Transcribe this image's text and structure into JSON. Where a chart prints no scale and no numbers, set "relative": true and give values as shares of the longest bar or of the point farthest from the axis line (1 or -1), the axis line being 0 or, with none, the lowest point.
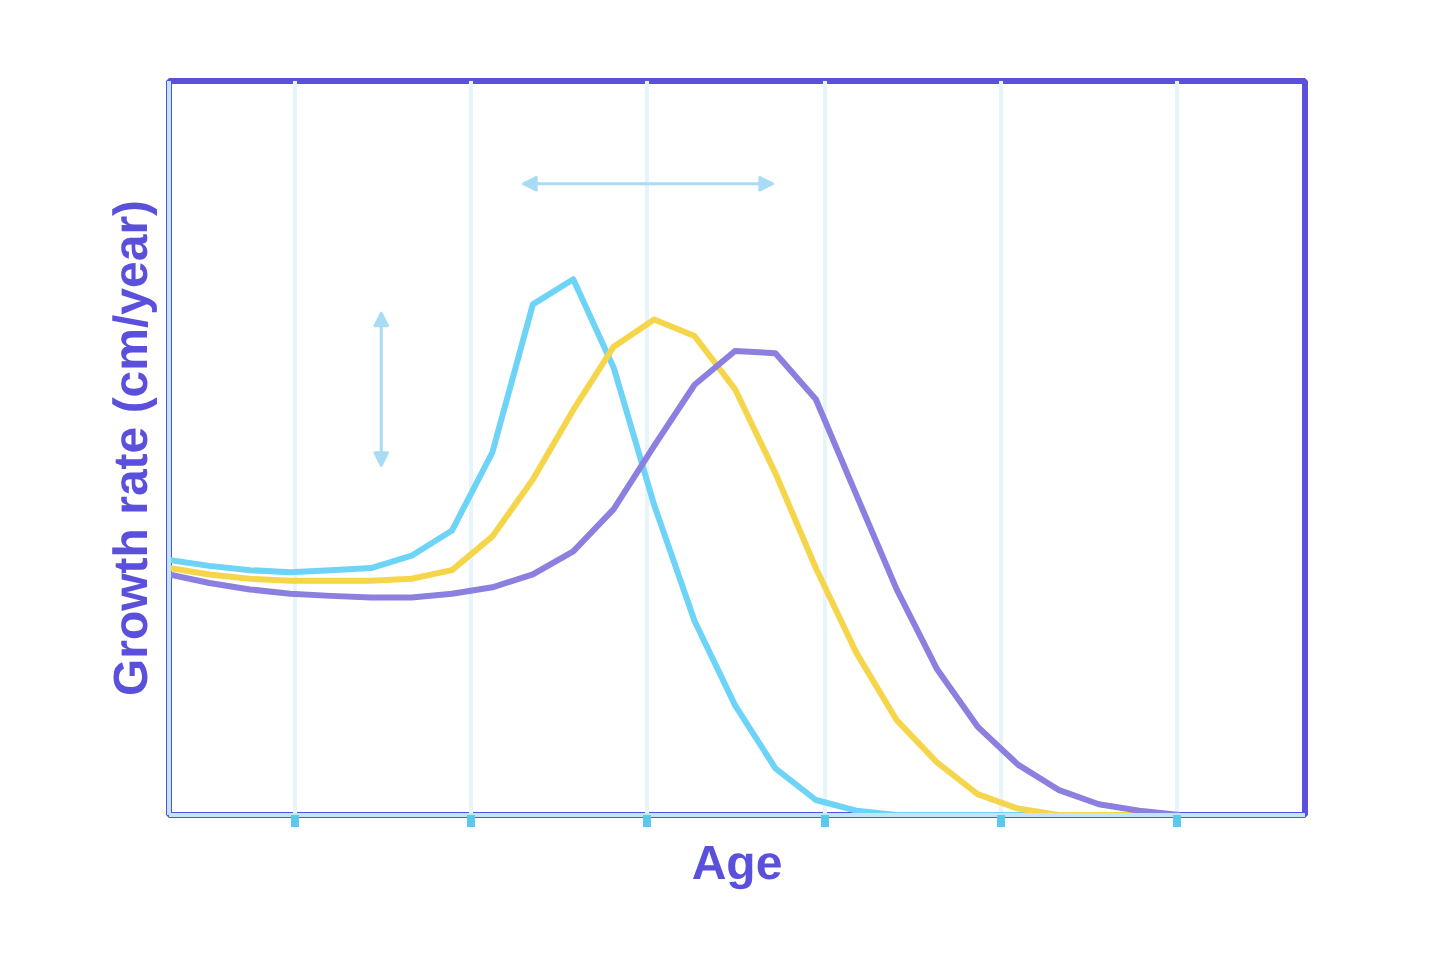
{
  "chart_data": {
    "type": "line",
    "relative": true,
    "xlabel": "Age",
    "ylabel": "Growth rate (cm/year)",
    "grid": "x",
    "tick_labels": false,
    "marker": "none",
    "line_style": "solid",
    "categories": [
      null,
      null,
      null,
      null,
      null,
      null,
      null,
      null,
      null,
      null,
      null,
      null,
      null,
      null,
      null,
      null,
      null,
      null,
      null,
      null,
      null,
      null,
      null,
      null,
      null,
      null
    ],
    "series": [
      {
        "color": "#6dd3f7",
        "values": [
          0.476,
          0.465,
          0.457,
          0.453,
          0.457,
          0.461,
          0.484,
          0.531,
          0.677,
          0.953,
          1.0,
          0.835,
          0.579,
          0.362,
          0.205,
          0.087,
          0.028,
          0.008,
          0,
          0,
          0,
          0,
          0,
          0,
          0,
          0
        ]
      },
      {
        "color": "#f5d54a",
        "values": [
          0.461,
          0.449,
          0.441,
          0.437,
          0.437,
          0.437,
          0.441,
          0.457,
          0.52,
          0.626,
          0.756,
          0.874,
          0.925,
          0.894,
          0.795,
          0.638,
          0.461,
          0.303,
          0.177,
          0.098,
          0.039,
          0.012,
          0,
          0,
          0,
          0
        ]
      },
      {
        "color": "#8b7fe0",
        "values": [
          0.449,
          0.433,
          0.421,
          0.413,
          0.409,
          0.406,
          0.406,
          0.413,
          0.425,
          0.449,
          0.492,
          0.571,
          0.689,
          0.803,
          0.866,
          0.862,
          0.776,
          0.598,
          0.421,
          0.272,
          0.165,
          0.094,
          0.047,
          0.02,
          0.008,
          0
        ]
      }
    ]
  }
}
